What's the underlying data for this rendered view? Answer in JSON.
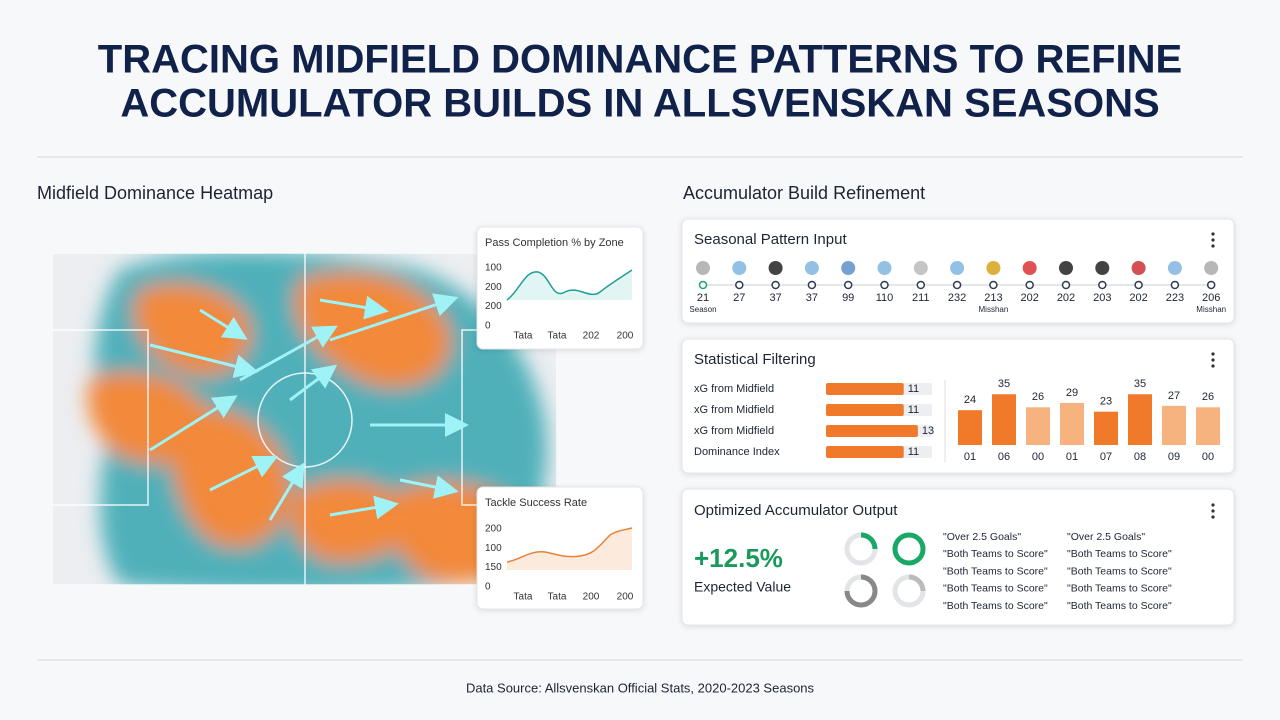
{
  "title_lines": [
    "TRACING MIDFIELD DOMINANCE PATTERNS TO REFINE",
    "ACCUMULATOR BUILDS IN ALLSVENSKAN SEASONS"
  ],
  "heatmap": {
    "title": "Midfield Dominance Heatmap"
  },
  "pass_card": {
    "title": "Pass Completion % by Zone",
    "y_labels": [
      "100",
      "200",
      "200",
      "0"
    ],
    "x_labels": [
      "Tata",
      "Tata",
      "202",
      "200"
    ]
  },
  "tackle_card": {
    "title": "Tackle Success Rate",
    "y_labels": [
      "200",
      "100",
      "150",
      "0"
    ],
    "x_labels": [
      "Tata",
      "Tata",
      "200",
      "200"
    ]
  },
  "right_title": "Accumulator Build Refinement",
  "seasonal": {
    "title": "Seasonal Pattern Input",
    "values": [
      "21",
      "27",
      "37",
      "37",
      "99",
      "110",
      "211",
      "232",
      "213",
      "202",
      "202",
      "203",
      "202",
      "223",
      "206"
    ],
    "notes": [
      "Season",
      null,
      null,
      null,
      null,
      null,
      null,
      null,
      "Misshan",
      null,
      null,
      null,
      null,
      null,
      "Misshan"
    ]
  },
  "filtering": {
    "title": "Statistical Filtering",
    "rows": [
      {
        "label": "xG from Midfield",
        "value": 11
      },
      {
        "label": "xG from Midfield",
        "value": 11
      },
      {
        "label": "xG from Midfield",
        "value": 13
      },
      {
        "label": "Dominance Index",
        "value": 11
      }
    ],
    "bars": {
      "categories": [
        "01",
        "06",
        "00",
        "01",
        "07",
        "08",
        "09",
        "00"
      ],
      "values": [
        24,
        35,
        26,
        29,
        23,
        35,
        27,
        26
      ],
      "colors": [
        "#f07a2a",
        "#f07a2a",
        "#f6b37f",
        "#f6b37f",
        "#f07a2a",
        "#f07a2a",
        "#f6b37f",
        "#f6b37f"
      ]
    }
  },
  "output": {
    "title": "Optimized Accumulator Output",
    "metric": "+12.5%",
    "metric_label": "Expected Value",
    "picks_left": [
      "\"Over 2.5 Goals\"",
      "\"Both Teams to Score\"",
      "\"Both Teams to Score\"",
      "\"Both Teams to Score\"",
      "\"Both Teams to Score\""
    ],
    "picks_right": [
      "\"Over 2.5 Goals\"",
      "\"Both Teams to Score\"",
      "\"Both Teams to Score\"",
      "\"Both Teams to Score\"",
      "\"Both Teams to Score\""
    ]
  },
  "footer": "Data Source: Allsvenskan Official Stats, 2020-2023 Seasons"
}
